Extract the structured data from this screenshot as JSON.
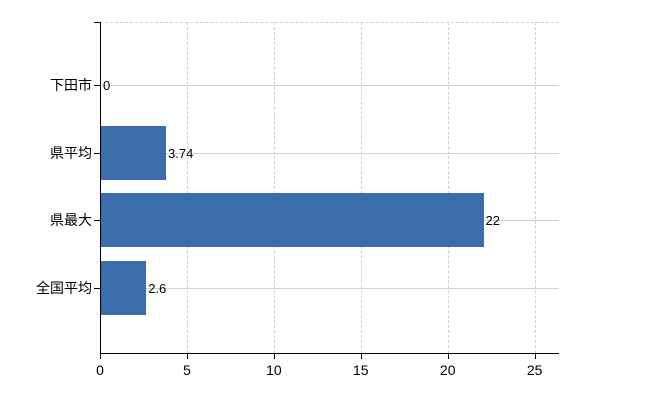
{
  "chart_data": {
    "type": "bar",
    "orientation": "horizontal",
    "categories": [
      "下田市",
      "県平均",
      "県最大",
      "全国平均"
    ],
    "values": [
      0,
      3.74,
      22,
      2.6
    ],
    "value_labels": [
      "0",
      "3.74",
      "22",
      "2.6"
    ],
    "x_ticks": [
      0,
      5,
      10,
      15,
      20,
      25
    ],
    "x_tick_labels": [
      "0",
      "5",
      "10",
      "15",
      "20",
      "25"
    ],
    "xlim": [
      0,
      26.4
    ],
    "grid": "horizontal-solid-and-vertical-dashed",
    "legend_position": "none"
  },
  "style": {
    "background": "#ffffff",
    "bar_color": "#3b6dac",
    "axis_color": "#000000",
    "text_color": "#000000",
    "h_grid_color": "#cdd6cd",
    "v_grid_color": "#d5cdd5",
    "plot_border_color": "#d2cfd2"
  }
}
